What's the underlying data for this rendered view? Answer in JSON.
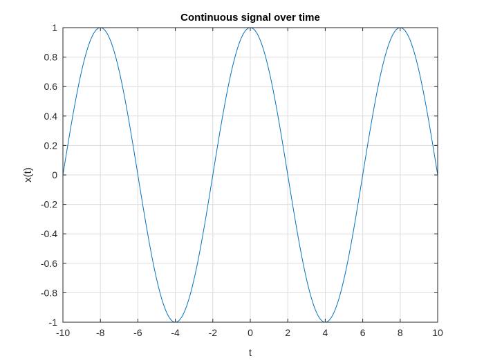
{
  "chart_data": {
    "type": "line",
    "title": "Continuous signal over time",
    "xlabel": "t",
    "ylabel": "x(t)",
    "xlim": [
      -10,
      10
    ],
    "ylim": [
      -1,
      1
    ],
    "grid": true,
    "x_ticks": [
      "-10",
      "-8",
      "-6",
      "-4",
      "-2",
      "0",
      "2",
      "4",
      "6",
      "8",
      "10"
    ],
    "y_ticks": [
      "-1",
      "-0.8",
      "-0.6",
      "-0.4",
      "-0.2",
      "0",
      "0.2",
      "0.4",
      "0.6",
      "0.8",
      "1"
    ],
    "series": [
      {
        "color": "#0072bd",
        "function": "cos(pi*t/4)",
        "x": [
          -10,
          -9,
          -8,
          -7,
          -6,
          -5,
          -4,
          -3,
          -2,
          -1,
          0,
          1,
          2,
          3,
          4,
          5,
          6,
          7,
          8,
          9,
          10
        ],
        "y": [
          0,
          0.707,
          1,
          0.707,
          0,
          -0.707,
          -1,
          -0.707,
          0,
          0.707,
          1,
          0.707,
          0,
          -0.707,
          -1,
          -0.707,
          0,
          0.707,
          1,
          0.707,
          0
        ]
      }
    ]
  }
}
